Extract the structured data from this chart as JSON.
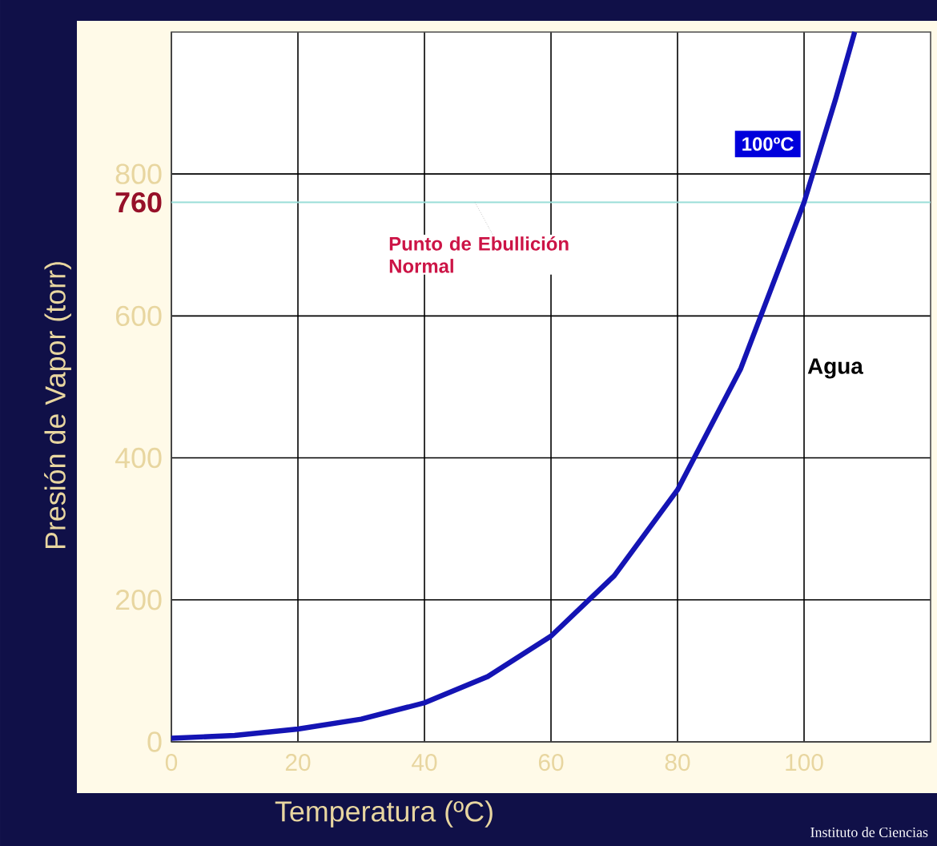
{
  "chart_data": {
    "type": "line",
    "xlabel": "Temperatura (ºC)",
    "ylabel": "Presión de Vapor (torr)",
    "xlim": [
      0,
      120
    ],
    "ylim": [
      0,
      1000
    ],
    "xticks": [
      0,
      20,
      40,
      60,
      80,
      100
    ],
    "yticks": [
      0,
      200,
      400,
      600,
      800
    ],
    "grid": true,
    "marker": "none",
    "line_style": "solid",
    "series": [
      {
        "name": "Agua",
        "color": "#1414b4",
        "x": [
          0,
          10,
          20,
          30,
          40,
          50,
          60,
          70,
          80,
          90,
          100,
          105,
          108
        ],
        "values": [
          5,
          9,
          18,
          32,
          55,
          92,
          149,
          234,
          355,
          526,
          760,
          906,
          1000
        ]
      }
    ],
    "ref_lines": [
      {
        "axis": "y",
        "value": 760,
        "label": "760",
        "color": "#99ddd8"
      }
    ],
    "annotations": [
      {
        "text": "Punto de Ebullición Normal",
        "x": 48,
        "y": 760
      },
      {
        "text": "100ºC",
        "x": 100,
        "y": 760
      },
      "Instituto de Ciencias"
    ]
  }
}
